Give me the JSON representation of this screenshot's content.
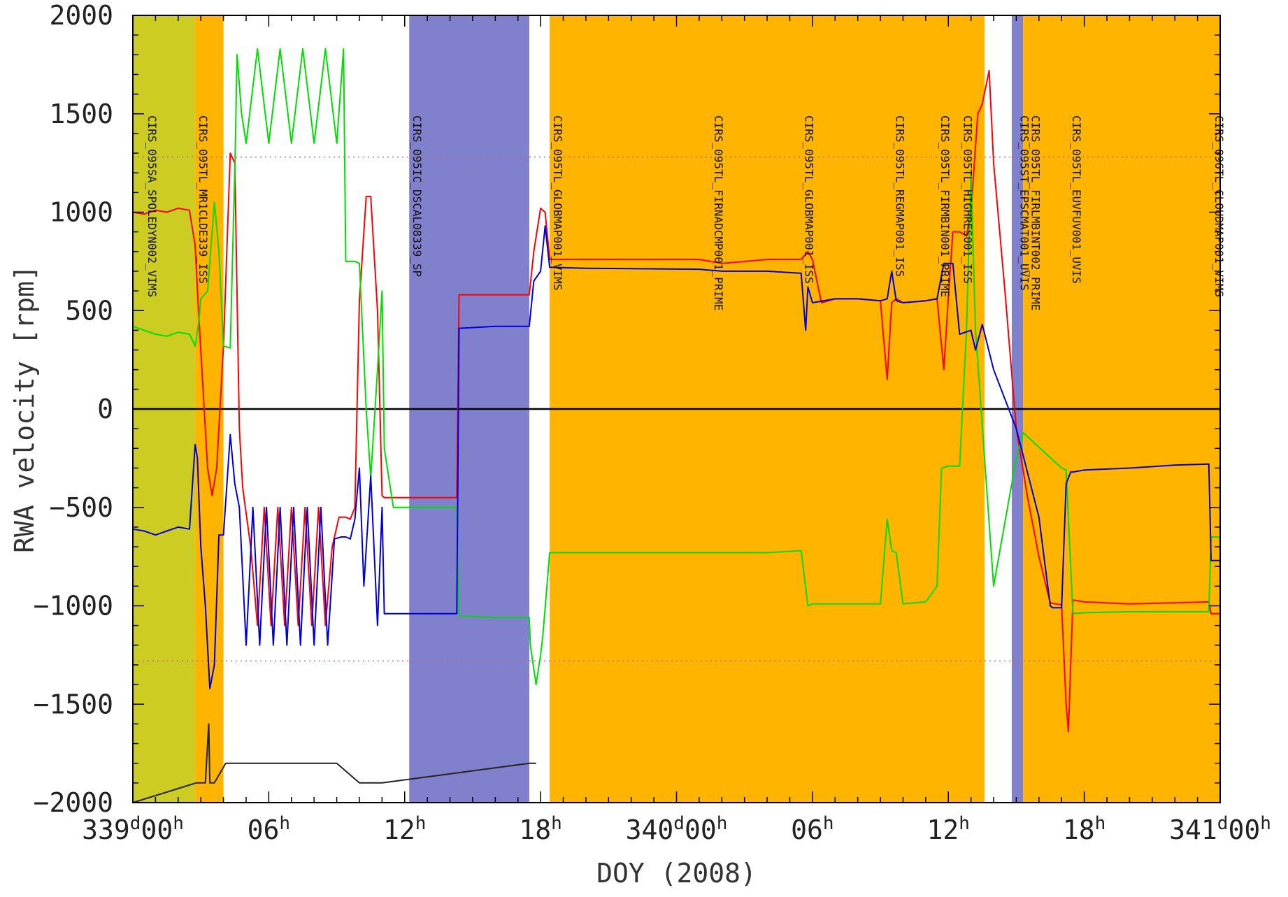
{
  "chart_data": {
    "type": "line",
    "title": "",
    "xlabel": "DOY (2008)",
    "ylabel": "RWA velocity [rpm]",
    "xlim": [
      0,
      48
    ],
    "ylim": [
      -2000,
      2000
    ],
    "y_ticks": [
      -2000,
      -1500,
      -1000,
      -500,
      0,
      500,
      1000,
      1500,
      2000
    ],
    "x_ticks": [
      {
        "x": 0,
        "day": "339",
        "hour": "00"
      },
      {
        "x": 6,
        "day": "",
        "hour": "06"
      },
      {
        "x": 12,
        "day": "",
        "hour": "12"
      },
      {
        "x": 18,
        "day": "",
        "hour": "18"
      },
      {
        "x": 24,
        "day": "340",
        "hour": "00"
      },
      {
        "x": 30,
        "day": "",
        "hour": "06"
      },
      {
        "x": 36,
        "day": "",
        "hour": "12"
      },
      {
        "x": 42,
        "day": "",
        "hour": "18"
      },
      {
        "x": 48,
        "day": "341",
        "hour": "00"
      }
    ],
    "day_unit": "d",
    "hour_unit": "h",
    "reference_lines": [
      {
        "y": 1280,
        "style": "dotted",
        "color": "#b07080"
      },
      {
        "y": -1280,
        "style": "dotted",
        "color": "#b07080"
      },
      {
        "y": 0,
        "style": "solid",
        "color": "#000000"
      }
    ],
    "bands": [
      {
        "x0": 0.0,
        "x1": 2.75,
        "color": "#cccc22"
      },
      {
        "x0": 2.75,
        "x1": 4.0,
        "color": "#ffb400"
      },
      {
        "x0": 12.2,
        "x1": 17.5,
        "color": "#8080cc"
      },
      {
        "x0": 18.4,
        "x1": 37.6,
        "color": "#ffb400"
      },
      {
        "x0": 38.8,
        "x1": 39.3,
        "color": "#8080cc"
      },
      {
        "x0": 39.3,
        "x1": 48.0,
        "color": "#ffb400"
      }
    ],
    "observation_labels": [
      {
        "x": 0.5,
        "text": "CIRS_095SA_SPOLEDYN002_VIMS"
      },
      {
        "x": 2.75,
        "text": "CIRS_095TL_MR1CLDE339_ISS"
      },
      {
        "x": 12.2,
        "text": "CIRS_095IC_DSCAL08339_SP"
      },
      {
        "x": 18.4,
        "text": "CIRS_095TL_GLOBMAP001_VIMS"
      },
      {
        "x": 25.5,
        "text": "CIRS_095TL_FIRNADCMP001_PRIME"
      },
      {
        "x": 29.5,
        "text": "CIRS_095TL_GLOBMAP001_ISS"
      },
      {
        "x": 33.5,
        "text": "CIRS_095TL_REGMAP001_ISS"
      },
      {
        "x": 35.5,
        "text": "CIRS_095TL_FIRMBIN001_PRIME"
      },
      {
        "x": 36.5,
        "text": "CIRS_095TL_HIGHRES001_ISS"
      },
      {
        "x": 39.0,
        "text": "CIRS_095ST_EPSCMAT001_UVIS"
      },
      {
        "x": 39.5,
        "text": "CIRS_095TL_FIRLMBINT002_PRIME"
      },
      {
        "x": 41.3,
        "text": "CIRS_095TL_EUVFUV001_UVIS"
      },
      {
        "x": 47.6,
        "text": "CIRS_096TL_CLOUDMAP001_VIMS"
      }
    ],
    "series": [
      {
        "color": "#ff0000",
        "x": [
          0,
          0.5,
          1.0,
          1.5,
          2.0,
          2.5,
          2.75,
          2.9,
          3.1,
          3.3,
          3.5,
          3.7,
          4.0,
          4.3,
          4.5,
          4.7,
          4.85,
          5.2,
          5.5,
          5.8,
          6.1,
          6.4,
          6.7,
          7.0,
          7.3,
          7.6,
          7.9,
          8.2,
          8.5,
          8.8,
          9.1,
          9.4,
          9.6,
          9.8,
          10.0,
          10.3,
          10.5,
          10.8,
          11.0,
          11.1,
          11.3,
          11.5,
          12.0,
          13.0,
          14.3,
          14.4,
          16.0,
          17.5,
          17.7,
          18.0,
          18.2,
          18.4,
          19.0,
          25.0,
          26.0,
          28.0,
          29.5,
          29.8,
          30.0,
          30.4,
          31.0,
          32.0,
          33.0,
          33.3,
          33.5,
          33.7,
          34.0,
          35.0,
          35.5,
          35.8,
          36.0,
          36.2,
          36.5,
          36.8,
          37.0,
          37.3,
          37.5,
          37.8,
          38.0,
          38.5,
          39.0,
          39.5,
          40.0,
          40.5,
          41.0,
          41.2,
          41.3,
          41.5,
          42.0,
          44.0,
          46.0,
          47.5,
          47.6,
          48.0
        ],
        "y": [
          1000,
          990,
          1010,
          1000,
          1020,
          1010,
          830,
          500,
          100,
          -300,
          -440,
          -300,
          320,
          1300,
          1250,
          -100,
          -400,
          -700,
          -1100,
          -500,
          -1100,
          -500,
          -1100,
          -500,
          -1100,
          -500,
          -1100,
          -500,
          -1100,
          -700,
          -550,
          -550,
          -560,
          -500,
          550,
          1080,
          1080,
          500,
          -440,
          -450,
          -450,
          -450,
          -450,
          -450,
          -450,
          580,
          580,
          580,
          800,
          1020,
          1000,
          760,
          760,
          760,
          740,
          760,
          760,
          800,
          760,
          540,
          560,
          560,
          550,
          150,
          540,
          560,
          540,
          550,
          560,
          200,
          570,
          900,
          900,
          880,
          1000,
          1500,
          1550,
          1720,
          1250,
          600,
          -100,
          -450,
          -750,
          -985,
          -995,
          -1500,
          -1640,
          -970,
          -980,
          -990,
          -985,
          -980,
          -1040,
          -1040
        ]
      },
      {
        "color": "#00dd00",
        "x": [
          0,
          0.5,
          1.0,
          1.5,
          2.0,
          2.5,
          2.75,
          2.9,
          3.0,
          3.3,
          3.6,
          3.8,
          4.0,
          4.3,
          4.45,
          4.5,
          4.6,
          4.8,
          5.0,
          5.5,
          6.0,
          6.5,
          7.0,
          7.5,
          8.0,
          8.5,
          9.0,
          9.3,
          9.4,
          9.8,
          10.0,
          10.3,
          10.5,
          10.8,
          11.0,
          11.1,
          11.5,
          12.0,
          13.0,
          14.3,
          14.4,
          16.0,
          17.5,
          17.55,
          17.8,
          18.0,
          18.1,
          18.4,
          20.0,
          22.0,
          25.0,
          28.0,
          29.5,
          29.8,
          30.0,
          32.0,
          33.0,
          33.3,
          33.5,
          33.7,
          34.0,
          35.0,
          35.5,
          35.7,
          36.0,
          36.2,
          36.5,
          36.8,
          37.0,
          37.2,
          38.0,
          39.0,
          39.3,
          41.0,
          41.2,
          41.5,
          42.0,
          44.0,
          46.0,
          47.5,
          47.6,
          48.0
        ],
        "y": [
          420,
          400,
          380,
          370,
          390,
          380,
          320,
          430,
          560,
          600,
          1050,
          800,
          320,
          310,
          1000,
          1200,
          1800,
          1500,
          1350,
          1830,
          1350,
          1830,
          1350,
          1830,
          1350,
          1830,
          1350,
          1830,
          750,
          750,
          740,
          0,
          -350,
          200,
          600,
          -200,
          -500,
          -500,
          -500,
          -500,
          -1050,
          -1060,
          -1060,
          -1200,
          -1400,
          -1250,
          -1150,
          -730,
          -730,
          -730,
          -730,
          -730,
          -720,
          -1000,
          -990,
          -990,
          -990,
          -560,
          -720,
          -730,
          -990,
          -980,
          -900,
          -300,
          -290,
          -290,
          -290,
          400,
          1200,
          400,
          -900,
          -250,
          -120,
          -300,
          -310,
          -1040,
          -1035,
          -1030,
          -1030,
          -1030,
          -650,
          -650
        ]
      },
      {
        "color": "#0000dd",
        "x": [
          0,
          0.5,
          1.0,
          1.5,
          2.0,
          2.5,
          2.75,
          2.85,
          3.0,
          3.2,
          3.4,
          3.6,
          3.8,
          4.0,
          4.3,
          4.5,
          4.7,
          5.0,
          5.3,
          5.6,
          5.9,
          6.2,
          6.5,
          6.8,
          7.1,
          7.4,
          7.7,
          8.0,
          8.3,
          8.6,
          8.9,
          9.2,
          9.4,
          9.6,
          9.8,
          10.0,
          10.2,
          10.5,
          10.8,
          11.0,
          11.1,
          11.3,
          11.5,
          12.0,
          13.0,
          14.3,
          14.4,
          16.0,
          17.5,
          17.7,
          18.0,
          18.2,
          18.4,
          20.0,
          25.0,
          26.0,
          28.0,
          29.5,
          29.7,
          29.8,
          30.0,
          31.0,
          32.0,
          33.0,
          33.3,
          33.5,
          33.7,
          34.0,
          35.0,
          35.5,
          35.8,
          36.0,
          36.2,
          36.5,
          37.0,
          37.2,
          37.5,
          38.0,
          39.0,
          40.0,
          40.5,
          40.6,
          41.0,
          41.2,
          41.4,
          41.5,
          42.0,
          44.0,
          46.0,
          47.5,
          47.6,
          48.0
        ],
        "y": [
          -610,
          -620,
          -640,
          -620,
          -600,
          -610,
          -180,
          -250,
          -700,
          -1000,
          -1420,
          -1300,
          -640,
          -640,
          -130,
          -380,
          -500,
          -1200,
          -500,
          -1200,
          -500,
          -1200,
          -500,
          -1200,
          -500,
          -1200,
          -500,
          -1200,
          -500,
          -1200,
          -660,
          -650,
          -650,
          -660,
          -560,
          -300,
          -900,
          -340,
          -1100,
          -500,
          -1040,
          -1040,
          -1040,
          -1040,
          -1040,
          -1040,
          410,
          420,
          420,
          650,
          700,
          930,
          720,
          715,
          710,
          700,
          700,
          690,
          400,
          620,
          540,
          560,
          560,
          550,
          560,
          700,
          550,
          540,
          550,
          560,
          740,
          740,
          740,
          380,
          400,
          300,
          430,
          200,
          -100,
          -550,
          -1000,
          -1010,
          -1010,
          -380,
          -320,
          -320,
          -310,
          -300,
          -285,
          -280,
          -770,
          -770
        ]
      },
      {
        "color": "#222222",
        "x": [
          0,
          2.8,
          3.0,
          3.2,
          3.35,
          3.4,
          3.5,
          3.6,
          4.1,
          4.7,
          5.5,
          6.0,
          6.5,
          7.0,
          7.5,
          8.0,
          8.5,
          9.0,
          10.0,
          10.5,
          11.0,
          17.5,
          17.8
        ],
        "y": [
          -2000,
          -1900,
          -1900,
          -1900,
          -1600,
          -1900,
          -1900,
          -1900,
          -1800,
          -1800,
          -1800,
          -1800,
          -1800,
          -1800,
          -1800,
          -1800,
          -1800,
          -1800,
          -1900,
          -1900,
          -1900,
          -1800,
          -1800
        ]
      }
    ]
  }
}
